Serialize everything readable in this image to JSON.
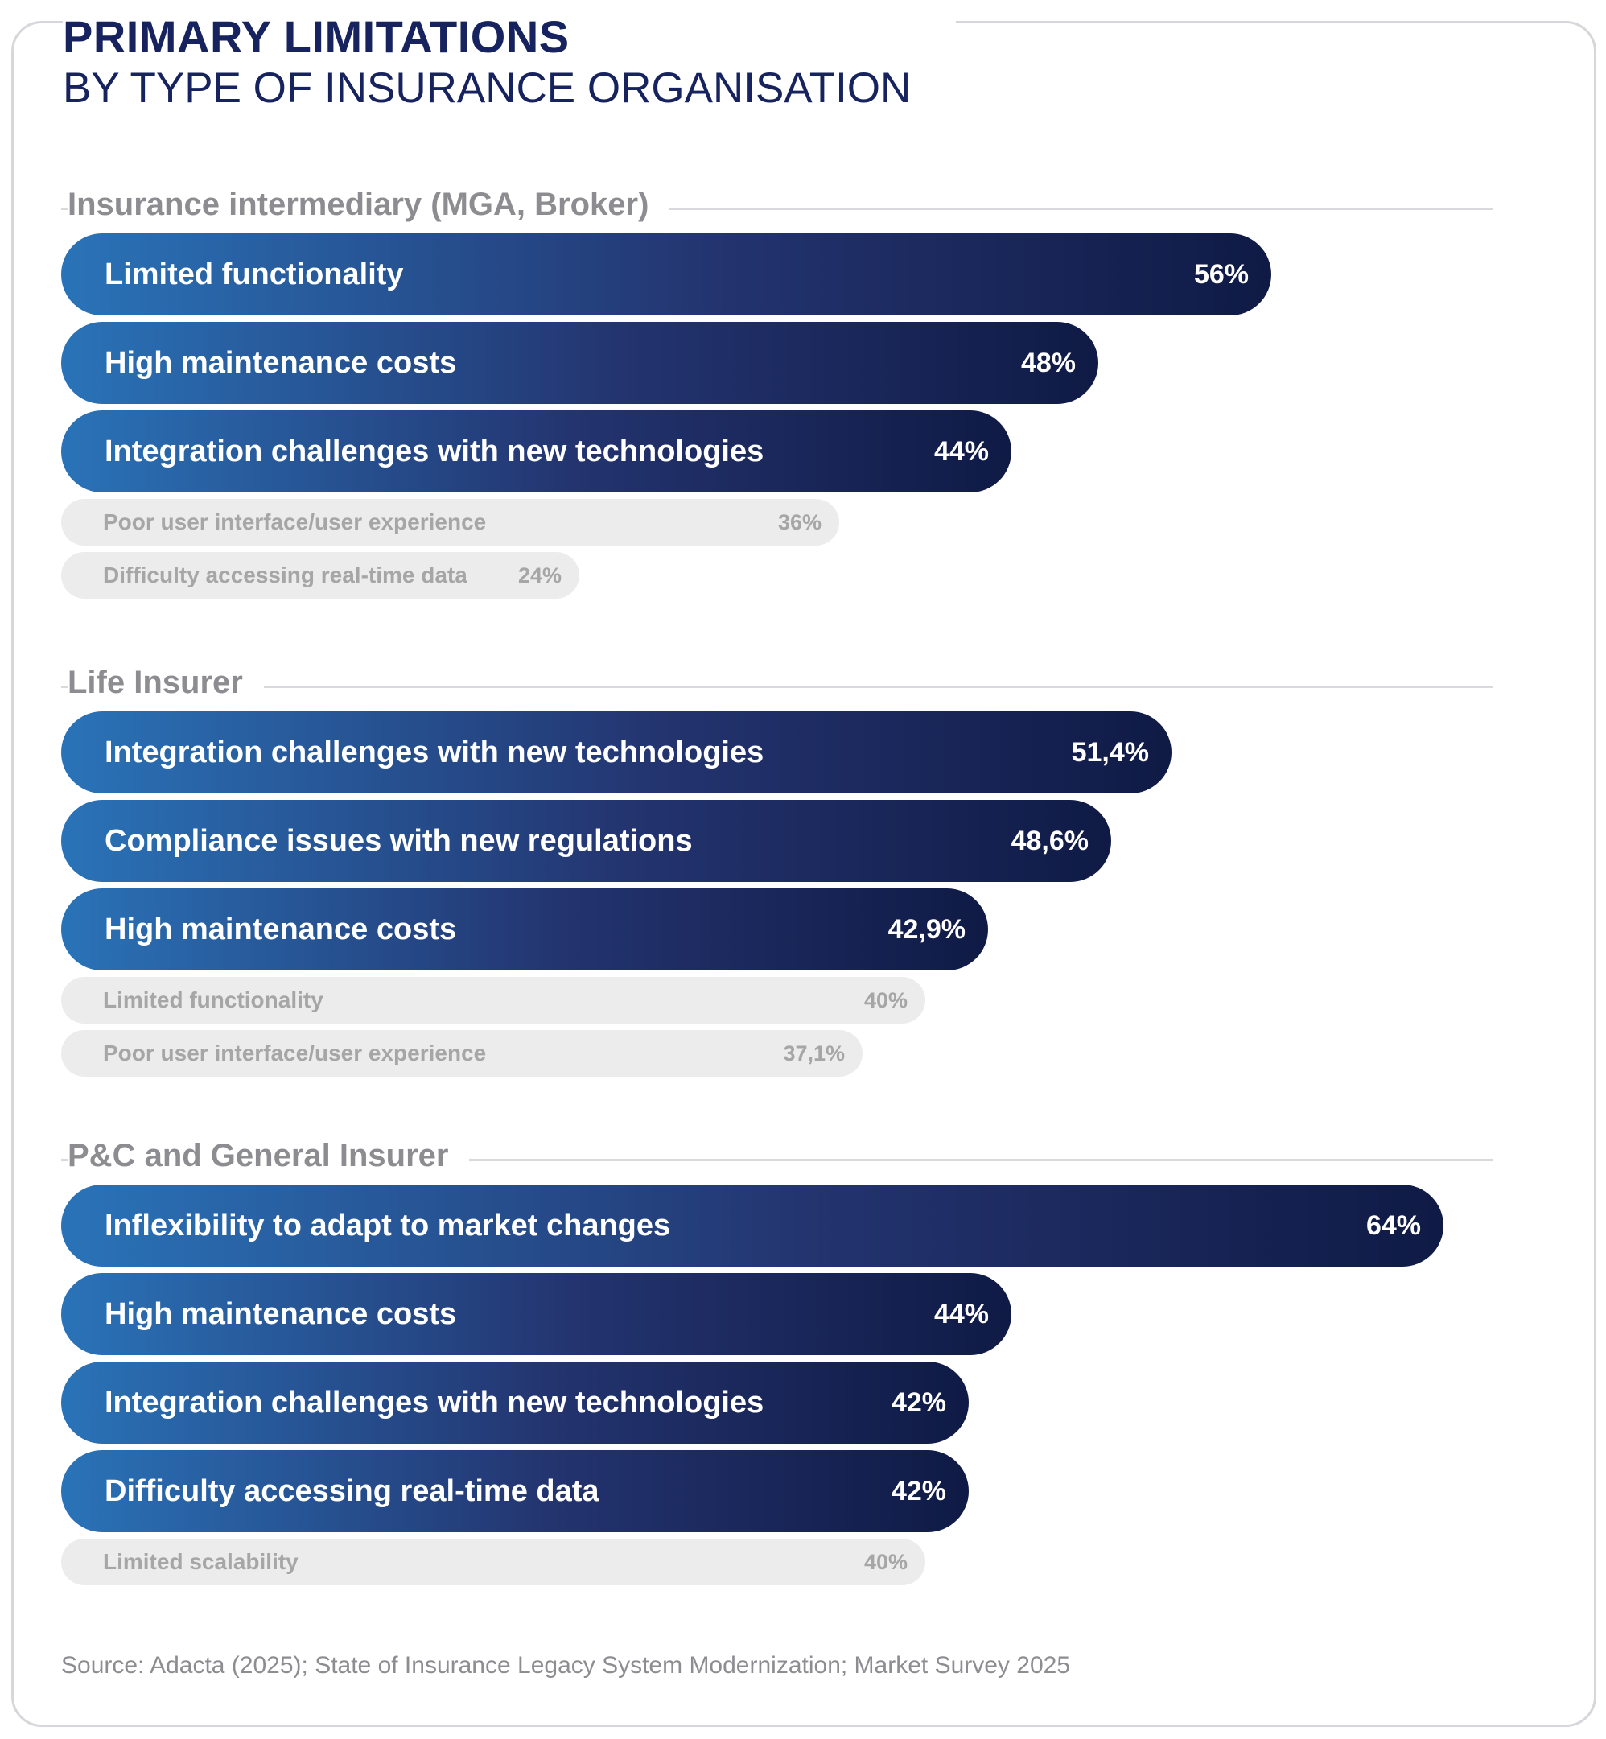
{
  "title": {
    "main": "PRIMARY LIMITATIONS",
    "sub": "BY TYPE OF INSURANCE ORGANISATION"
  },
  "chart_data": [
    {
      "type": "bar",
      "group": "Insurance intermediary (MGA, Broker)",
      "categories": [
        "Limited functionality",
        "High maintenance costs",
        "Integration challenges with new technologies",
        "Poor user interface/user experience",
        "Difficulty accessing real-time data"
      ],
      "values": [
        56,
        48,
        44,
        36,
        24
      ],
      "value_labels": [
        "56%",
        "48%",
        "44%",
        "36%",
        "24%"
      ],
      "highlighted": [
        true,
        true,
        true,
        false,
        false
      ]
    },
    {
      "type": "bar",
      "group": "Life Insurer",
      "categories": [
        "Integration challenges with new technologies",
        "Compliance issues with new regulations",
        "High maintenance costs",
        "Limited functionality",
        "Poor user interface/user experience"
      ],
      "values": [
        51.4,
        48.6,
        42.9,
        40,
        37.1
      ],
      "value_labels": [
        "51,4%",
        "48,6%",
        "42,9%",
        "40%",
        "37,1%"
      ],
      "highlighted": [
        true,
        true,
        true,
        false,
        false
      ]
    },
    {
      "type": "bar",
      "group": "P&C and General Insurer",
      "categories": [
        "Inflexibility to adapt to market changes",
        "High maintenance costs",
        "Integration challenges with new technologies",
        "Difficulty accessing real-time data",
        "Limited scalability"
      ],
      "values": [
        64,
        44,
        42,
        42,
        40
      ],
      "value_labels": [
        "64%",
        "44%",
        "42%",
        "42%",
        "40%"
      ],
      "highlighted": [
        true,
        true,
        true,
        true,
        false
      ]
    }
  ],
  "source": "Source: Adacta (2025); State of Insurance Legacy System Modernization; Market Survey 2025"
}
